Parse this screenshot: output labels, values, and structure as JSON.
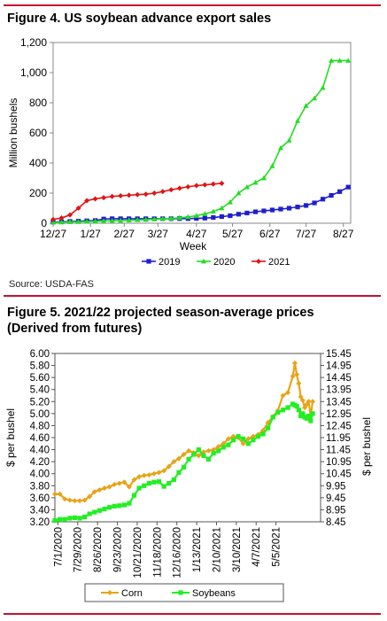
{
  "figure4": {
    "title": "Figure 4. US soybean advance export sales",
    "source": "Source: USDA-FAS",
    "chart_data": {
      "type": "line",
      "title": "Figure 4. US soybean advance export sales",
      "xlabel": "Week",
      "ylabel": "Million bushels",
      "ylim": [
        0,
        1200
      ],
      "yticks": [
        0,
        200,
        400,
        600,
        800,
        1000,
        1200
      ],
      "ytick_labels": [
        "0",
        "200",
        "400",
        "600",
        "800",
        "1,000",
        "1,200"
      ],
      "xticks": [
        0,
        4.43,
        8.43,
        12.43,
        17,
        21.29,
        25.71,
        30,
        34.43
      ],
      "xtick_labels": [
        "12/27",
        "1/27",
        "2/27",
        "3/27",
        "4/27",
        "5/27",
        "6/27",
        "7/27",
        "8/27"
      ],
      "xlim": [
        0,
        35.3
      ],
      "legend": "bottom",
      "grid": false,
      "colors": {
        "2019": "#1f1fcf",
        "2020": "#22dd22",
        "2021": "#e01414"
      },
      "series": [
        {
          "name": "2019",
          "marker": "square",
          "x": [
            0,
            1,
            2,
            3,
            4,
            5,
            6,
            7,
            8,
            9,
            10,
            11,
            12,
            13,
            14,
            15,
            16,
            17,
            18,
            19,
            20,
            21,
            22,
            23,
            24,
            25,
            26,
            27,
            28,
            29,
            30,
            31,
            32,
            33,
            34,
            35
          ],
          "values": [
            8,
            10,
            12,
            14,
            16,
            18,
            28,
            30,
            30,
            30,
            30,
            30,
            30,
            30,
            30,
            31,
            31,
            32,
            34,
            38,
            44,
            50,
            60,
            68,
            76,
            82,
            88,
            94,
            100,
            108,
            118,
            135,
            160,
            185,
            210,
            240
          ]
        },
        {
          "name": "2020",
          "marker": "triangle",
          "x": [
            0,
            1,
            2,
            3,
            4,
            5,
            6,
            7,
            8,
            9,
            10,
            11,
            12,
            13,
            14,
            15,
            16,
            17,
            18,
            19,
            20,
            21,
            22,
            23,
            24,
            25,
            26,
            27,
            28,
            29,
            30,
            31,
            32,
            33,
            34,
            35
          ],
          "values": [
            5,
            7,
            9,
            10,
            11,
            13,
            15,
            16,
            18,
            20,
            22,
            24,
            27,
            30,
            32,
            36,
            42,
            50,
            62,
            78,
            100,
            140,
            200,
            240,
            270,
            300,
            380,
            500,
            550,
            680,
            780,
            830,
            900,
            1080,
            1080,
            1080
          ]
        },
        {
          "name": "2021",
          "marker": "diamond",
          "x": [
            0,
            1,
            2,
            3,
            4,
            5,
            6,
            7,
            8,
            9,
            10,
            11,
            12,
            13,
            14,
            15,
            16,
            17,
            18,
            19,
            20
          ],
          "values": [
            25,
            35,
            55,
            100,
            150,
            162,
            170,
            178,
            182,
            186,
            190,
            193,
            200,
            210,
            222,
            232,
            242,
            250,
            255,
            260,
            265
          ]
        }
      ]
    }
  },
  "figure5": {
    "title_line1": "Figure 5. 2021/22 projected season-average prices",
    "title_line2": "(Derived from futures)",
    "chart_data": {
      "type": "line",
      "title": "Figure 5. 2021/22 projected season-average prices (Derived from futures)",
      "ylabel_left": "$ per bushel",
      "ylabel_right": "$ per bushel",
      "ylim_left": [
        3.2,
        6.0
      ],
      "yticks_left": [
        "3.20",
        "3.40",
        "3.60",
        "3.80",
        "4.00",
        "4.20",
        "4.40",
        "4.60",
        "4.80",
        "5.00",
        "5.20",
        "5.40",
        "5.60",
        "5.80",
        "6.00"
      ],
      "ylim_right": [
        8.45,
        15.45
      ],
      "yticks_right": [
        "8.45",
        "8.95",
        "9.45",
        "9.95",
        "10.45",
        "10.95",
        "11.45",
        "11.95",
        "12.45",
        "12.95",
        "13.45",
        "13.95",
        "14.45",
        "14.95",
        "15.45"
      ],
      "xtick_labels": [
        "7/1/2020",
        "7/29/2020",
        "8/26/2020",
        "9/23/2020",
        "10/21/2020",
        "11/18/2020",
        "12/16/2020",
        "1/13/2021",
        "2/10/2021",
        "3/10/2021",
        "4/7/2021",
        "5/5/2021"
      ],
      "xlim": [
        0,
        26.8
      ],
      "legend": "bottom",
      "grid": false,
      "colors": {
        "Corn": "#e8a317",
        "Soybeans": "#22ee22"
      },
      "series": [
        {
          "name": "Corn",
          "axis": "left",
          "marker": "diamond",
          "x": [
            0,
            0.5,
            1,
            1.5,
            2,
            2.5,
            3,
            3.5,
            4,
            4.5,
            5,
            5.5,
            6,
            6.5,
            7,
            7.5,
            8,
            8.5,
            9,
            9.5,
            10,
            10.5,
            11,
            11.5,
            12,
            12.5,
            13,
            13.5,
            14,
            14.5,
            15,
            15.5,
            16,
            16.5,
            17,
            17.5,
            18,
            18.5,
            19,
            19.5,
            20,
            20.5,
            21,
            21.5,
            22,
            22.5,
            23,
            23.5,
            24,
            24.2,
            24.4,
            24.6,
            24.8,
            25,
            25.2,
            25.4,
            25.6,
            25.8,
            26
          ],
          "values": [
            3.66,
            3.66,
            3.58,
            3.56,
            3.55,
            3.55,
            3.56,
            3.62,
            3.7,
            3.73,
            3.76,
            3.78,
            3.82,
            3.84,
            3.86,
            3.78,
            3.9,
            3.95,
            3.97,
            3.98,
            4.0,
            4.02,
            4.05,
            4.12,
            4.2,
            4.25,
            4.32,
            4.38,
            4.35,
            4.3,
            4.36,
            4.38,
            4.4,
            4.45,
            4.5,
            4.58,
            4.62,
            4.6,
            4.5,
            4.58,
            4.62,
            4.65,
            4.72,
            4.85,
            4.95,
            5.05,
            5.3,
            5.35,
            5.62,
            5.84,
            5.65,
            5.5,
            5.28,
            5.22,
            5.1,
            5.15,
            5.2,
            4.95,
            5.2
          ]
        },
        {
          "name": "Soybeans",
          "axis": "right",
          "marker": "square",
          "x": [
            0,
            0.5,
            1,
            1.5,
            2,
            2.5,
            3,
            3.5,
            4,
            4.5,
            5,
            5.5,
            6,
            6.5,
            7,
            7.5,
            8,
            8.5,
            9,
            9.5,
            10,
            10.5,
            11,
            11.5,
            12,
            12.5,
            13,
            13.5,
            14,
            14.5,
            15,
            15.5,
            16,
            16.5,
            17,
            17.5,
            18,
            18.5,
            19,
            19.5,
            20,
            20.5,
            21,
            21.5,
            22,
            22.5,
            23,
            23.5,
            24,
            24.2,
            24.4,
            24.6,
            24.8,
            25,
            25.2,
            25.4,
            25.6,
            25.8,
            26
          ],
          "values": [
            8.5,
            8.55,
            8.55,
            8.6,
            8.62,
            8.6,
            8.65,
            8.78,
            8.85,
            8.92,
            8.98,
            9.05,
            9.1,
            9.12,
            9.15,
            9.22,
            9.55,
            9.85,
            9.95,
            10.05,
            10.1,
            10.12,
            9.92,
            10.05,
            10.2,
            10.5,
            10.72,
            11.05,
            11.25,
            11.45,
            11.2,
            11.05,
            11.3,
            11.4,
            11.55,
            11.65,
            11.85,
            12.0,
            11.9,
            11.7,
            11.85,
            12.0,
            12.1,
            12.35,
            12.8,
            13.0,
            13.1,
            13.2,
            13.35,
            13.3,
            13.25,
            13.1,
            12.85,
            12.95,
            12.8,
            12.75,
            12.85,
            12.65,
            12.95
          ]
        }
      ]
    }
  }
}
